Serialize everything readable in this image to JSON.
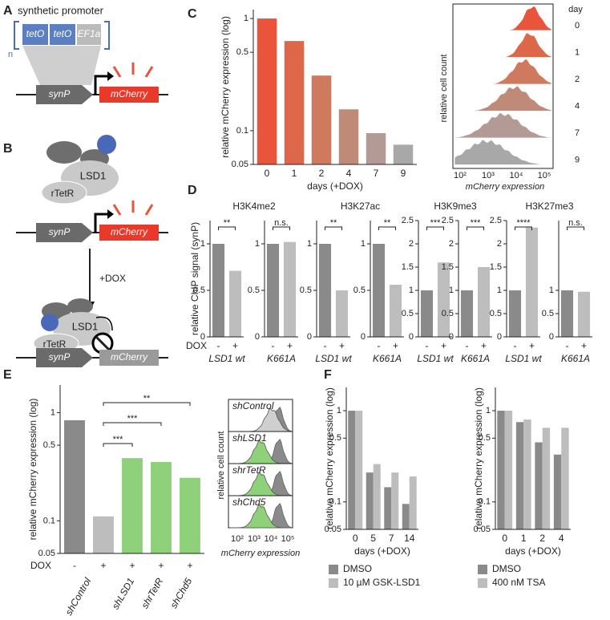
{
  "panels": [
    "A",
    "B",
    "C",
    "D",
    "E",
    "F"
  ],
  "diagram_A": {
    "title": "synthetic promoter",
    "elements": [
      "tetO",
      "tetO",
      "EF1a"
    ],
    "repeat": "n",
    "promoter": "synP",
    "reporter": "mCherry"
  },
  "diagram_B": {
    "proteins": [
      "LSD1",
      "rTetR"
    ],
    "promoter": "synP",
    "reporter": "mCherry",
    "treatment": "+DOX",
    "proteins_after": [
      "LSD1",
      "rTetR"
    ],
    "promoter_after": "synP",
    "reporter_after": "mCherry"
  },
  "histogram_C": {
    "ylabel": "relative cell count",
    "xlabel": "mCherry expression",
    "legend_title": "day",
    "days": [
      "0",
      "1",
      "2",
      "4",
      "7",
      "9"
    ],
    "xticks": [
      "10²",
      "10³",
      "10⁴",
      "10⁵"
    ]
  },
  "histogram_E": {
    "ylabel": "relative cell count",
    "xlabel": "mCherry expression",
    "labels": [
      "shControl",
      "shLSD1",
      "shrTetR",
      "shChd5"
    ],
    "xticks": [
      "10²",
      "10³",
      "10⁴",
      "10⁵"
    ]
  },
  "chart_data": [
    {
      "type": "bar",
      "log": true,
      "ylabel": "relative mCherry expression (log)",
      "xlabel": "days (+DOX)",
      "categories": [
        "0",
        "1",
        "2",
        "4",
        "7",
        "9"
      ],
      "series": [
        {
          "values": [
            1,
            0.63,
            0.31,
            0.155,
            0.095,
            0.075
          ],
          "colors": [
            "#e8553a",
            "#dc6849",
            "#cf7a5e",
            "#c08a78",
            "#b39a94",
            "#a8a8a8"
          ]
        }
      ],
      "ylim": [
        0.05,
        1.2
      ],
      "yticks": [
        1,
        0.5,
        0.1,
        0.05
      ]
    },
    {
      "type": "bar",
      "title": "H3K4me2",
      "ylabel": "relative ChIP signal (synP)",
      "dox_label": "DOX",
      "categories": [
        "-",
        "+"
      ],
      "xlabel": "LSD1 wt",
      "series": [
        {
          "values": [
            1,
            0.71
          ],
          "colors": [
            "#8a8a8a",
            "#bdbdbd"
          ]
        }
      ],
      "ylim": [
        0,
        1.25
      ],
      "yticks": [
        0,
        0.5,
        1
      ],
      "annotation": "**"
    },
    {
      "type": "bar",
      "categories": [
        "-",
        "+"
      ],
      "xlabel": "K661A",
      "series": [
        {
          "values": [
            1,
            1.02
          ],
          "colors": [
            "#8a8a8a",
            "#bdbdbd"
          ]
        }
      ],
      "ylim": [
        0,
        1.25
      ],
      "yticks": [
        0,
        0.5,
        1
      ],
      "annotation": "n.s."
    },
    {
      "type": "bar",
      "title": "H3K27ac",
      "categories": [
        "-",
        "+"
      ],
      "xlabel": "LSD1 wt",
      "series": [
        {
          "values": [
            1,
            0.5
          ],
          "colors": [
            "#8a8a8a",
            "#bdbdbd"
          ]
        }
      ],
      "ylim": [
        0,
        1.25
      ],
      "yticks": [
        0,
        0.5,
        1
      ],
      "annotation": "**"
    },
    {
      "type": "bar",
      "categories": [
        "-",
        "+"
      ],
      "xlabel": "K661A",
      "series": [
        {
          "values": [
            1,
            0.56
          ],
          "colors": [
            "#8a8a8a",
            "#bdbdbd"
          ]
        }
      ],
      "ylim": [
        0,
        1.25
      ],
      "yticks": [
        0,
        0.5,
        1
      ],
      "annotation": "**"
    },
    {
      "type": "bar",
      "title": "H3K9me3",
      "categories": [
        "-",
        "+"
      ],
      "xlabel": "LSD1 wt",
      "series": [
        {
          "values": [
            1,
            1.6
          ],
          "colors": [
            "#8a8a8a",
            "#bdbdbd"
          ]
        }
      ],
      "ylim": [
        0,
        2.5
      ],
      "yticks": [
        0,
        0.5,
        1,
        1.5,
        2,
        2.5
      ],
      "annotation": "***"
    },
    {
      "type": "bar",
      "categories": [
        "-",
        "+"
      ],
      "xlabel": "K661A",
      "series": [
        {
          "values": [
            1,
            1.5
          ],
          "colors": [
            "#8a8a8a",
            "#bdbdbd"
          ]
        }
      ],
      "ylim": [
        0,
        2.5
      ],
      "yticks": [
        0,
        0.5,
        1,
        1.5,
        2,
        2.5
      ],
      "annotation": "***"
    },
    {
      "type": "bar",
      "title": "H3K27me3",
      "categories": [
        "-",
        "+"
      ],
      "xlabel": "LSD1 wt",
      "series": [
        {
          "values": [
            1,
            2.35
          ],
          "colors": [
            "#8a8a8a",
            "#bdbdbd"
          ]
        }
      ],
      "ylim": [
        0,
        2.5
      ],
      "yticks": [
        0,
        0.5,
        1,
        1.5,
        2,
        2.5
      ],
      "annotation": "****"
    },
    {
      "type": "bar",
      "categories": [
        "-",
        "+"
      ],
      "xlabel": "K661A",
      "series": [
        {
          "values": [
            1,
            0.97
          ],
          "colors": [
            "#8a8a8a",
            "#bdbdbd"
          ]
        }
      ],
      "ylim": [
        0,
        2.5
      ],
      "yticks": [
        0,
        0.5,
        1
      ],
      "annotation": "n.s."
    },
    {
      "type": "bar",
      "log": true,
      "ylabel": "relative mCherry expression (log)",
      "dox_label": "DOX",
      "dox": [
        "-",
        "+",
        "+",
        "+",
        "+"
      ],
      "categories": [
        null,
        "shControl",
        "shLSD1",
        "shrTetR",
        "shChd5"
      ],
      "series": [
        {
          "values": [
            0.85,
            0.11,
            0.38,
            0.35,
            0.25
          ],
          "colors": [
            "#8a8a8a",
            "#bdbdbd",
            "#8fd17a",
            "#8fd17a",
            "#8fd17a"
          ]
        }
      ],
      "ylim": [
        0.05,
        1.8
      ],
      "yticks": [
        1,
        0.5,
        0.1,
        0.05
      ],
      "annotations": [
        "***",
        "***",
        "**"
      ]
    },
    {
      "type": "bar",
      "log": true,
      "ylabel": "relative mCherry expression (log)",
      "xlabel": "days (+DOX)",
      "categories": [
        "0",
        "5",
        "7",
        "14"
      ],
      "series": [
        {
          "name": "DMSO",
          "color": "#8a8a8a",
          "values": [
            1,
            0.21,
            0.145,
            0.095
          ]
        },
        {
          "name": "10 µM GSK-LSD1",
          "color": "#bdbdbd",
          "values": [
            1,
            0.26,
            0.21,
            0.19
          ]
        }
      ],
      "ylim": [
        0.05,
        1.8
      ],
      "yticks": [
        1,
        0.5,
        0.1,
        0.05
      ]
    },
    {
      "type": "bar",
      "log": true,
      "ylabel": "relative mCherry expression (log)",
      "xlabel": "days (+DOX)",
      "categories": [
        "0",
        "1",
        "2",
        "4"
      ],
      "series": [
        {
          "name": "DMSO",
          "color": "#8a8a8a",
          "values": [
            1,
            0.75,
            0.45,
            0.33
          ]
        },
        {
          "name": "400 nM TSA",
          "color": "#bdbdbd",
          "values": [
            1,
            0.8,
            0.65,
            0.65
          ]
        }
      ],
      "ylim": [
        0.05,
        1.8
      ],
      "yticks": [
        1,
        0.5,
        0.1,
        0.05
      ]
    }
  ]
}
